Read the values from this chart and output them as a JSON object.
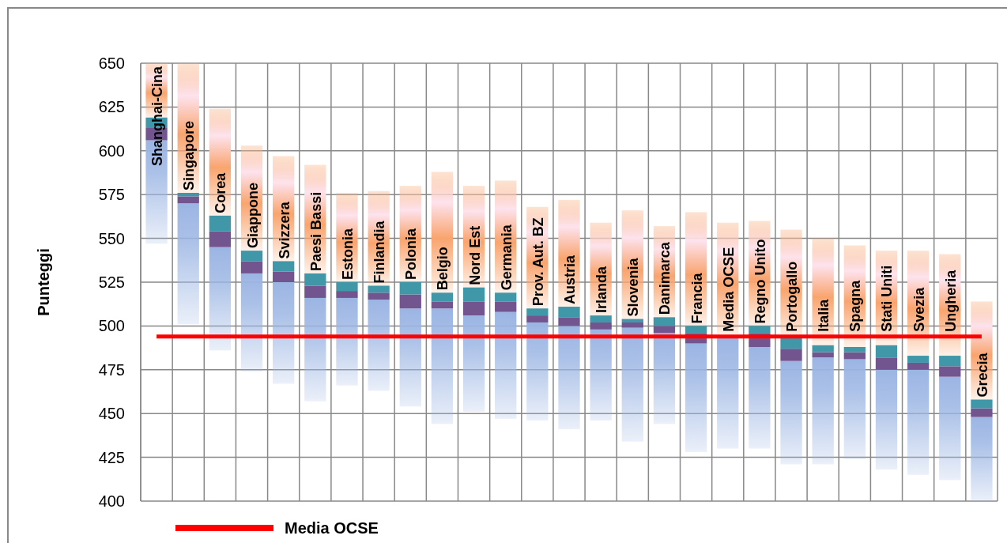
{
  "chart_data": {
    "type": "bar",
    "ylabel": "Punteggi",
    "categories": [
      "Shanghai-Cina",
      "Singapore",
      "Corea",
      "Giappone",
      "Svizzera",
      "Paesi Bassi",
      "Estonia",
      "Finlandia",
      "Polonia",
      "Belgio",
      "Nord Est",
      "Germania",
      "Prov. Aut. BZ",
      "Austria",
      "Irlanda",
      "Slovenia",
      "Danimarca",
      "Francia",
      "Media OCSE",
      "Regno Unito",
      "Portogallo",
      "Italia",
      "Spagna",
      "Stati Uniti",
      "Svezia",
      "Ungheria",
      "Grecia"
    ],
    "series": [
      {
        "color": "#9bb5e3",
        "base": [
          547,
          501,
          486,
          474,
          467,
          457,
          466,
          463,
          454,
          444,
          451,
          447,
          446,
          441,
          446,
          434,
          444,
          428,
          430,
          430,
          421,
          421,
          424,
          418,
          415,
          412,
          400
        ],
        "values": [
          59,
          69,
          59,
          56,
          58,
          59,
          50,
          52,
          56,
          66,
          55,
          61,
          56,
          59,
          52,
          65,
          52,
          62,
          63,
          58,
          59,
          61,
          57,
          57,
          60,
          59,
          48
        ]
      },
      {
        "color": "#72558f",
        "base": [
          606,
          570,
          545,
          530,
          525,
          516,
          516,
          515,
          510,
          510,
          506,
          508,
          502,
          500,
          498,
          499,
          496,
          490,
          null,
          488,
          480,
          482,
          481,
          475,
          475,
          471,
          448
        ],
        "values": [
          7,
          4,
          9,
          7,
          6,
          7,
          4,
          4,
          8,
          4,
          8,
          6,
          4,
          5,
          4,
          3,
          4,
          6,
          null,
          8,
          7,
          3,
          4,
          7,
          4,
          6,
          5
        ]
      },
      {
        "color": "#3f97a8",
        "base": [
          613,
          574,
          554,
          537,
          531,
          523,
          520,
          519,
          518,
          514,
          514,
          514,
          506,
          505,
          502,
          502,
          500,
          496,
          null,
          496,
          487,
          485,
          485,
          482,
          479,
          477,
          453
        ],
        "values": [
          6,
          2,
          9,
          6,
          6,
          7,
          5,
          4,
          7,
          5,
          8,
          5,
          4,
          6,
          4,
          2,
          5,
          4,
          null,
          4,
          6,
          4,
          3,
          7,
          4,
          6,
          5
        ]
      },
      {
        "type": "line",
        "name": "Media OCSE",
        "color": "#ff0000",
        "values": [
          494,
          494,
          494,
          494,
          494,
          494,
          494,
          494,
          494,
          494,
          494,
          494,
          494,
          494,
          494,
          494,
          494,
          494,
          494,
          494,
          494,
          494,
          494,
          494,
          494,
          494,
          494
        ]
      },
      {
        "color": "#f9a46e",
        "base": [
          619,
          576,
          563,
          543,
          537,
          530,
          525,
          523,
          525,
          519,
          522,
          519,
          510,
          511,
          506,
          504,
          505,
          500,
          495,
          500,
          493,
          489,
          488,
          489,
          483,
          483,
          458
        ],
        "values": [
          31,
          74,
          61,
          60,
          60,
          62,
          51,
          54,
          55,
          69,
          58,
          64,
          58,
          61,
          53,
          62,
          52,
          65,
          64,
          60,
          62,
          61,
          58,
          54,
          60,
          58,
          56
        ]
      }
    ],
    "ylim": [
      400,
      650
    ],
    "yticks": [
      400,
      425,
      450,
      475,
      500,
      525,
      550,
      575,
      600,
      625,
      650
    ],
    "grid": true,
    "legend": "bottom"
  }
}
